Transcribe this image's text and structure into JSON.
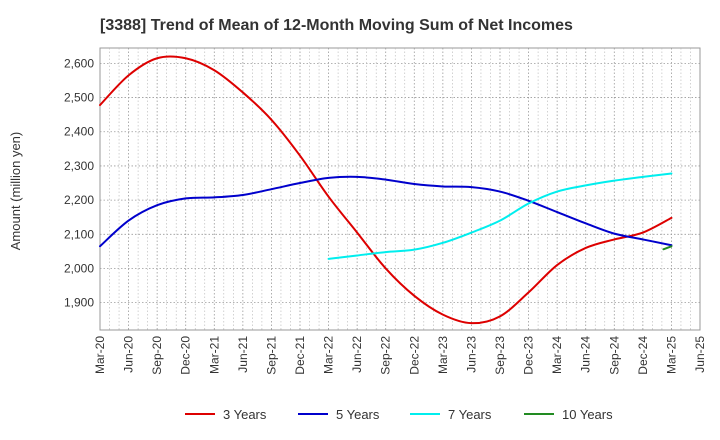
{
  "chart_data": {
    "type": "line",
    "title": "[3388]  Trend of Mean of 12-Month Moving Sum of Net Incomes",
    "xlabel": "",
    "ylabel": "Amount (million yen)",
    "x_tick_labels": [
      "Mar-20",
      "Jun-20",
      "Sep-20",
      "Dec-20",
      "Mar-21",
      "Jun-21",
      "Sep-21",
      "Dec-21",
      "Mar-22",
      "Jun-22",
      "Sep-22",
      "Dec-22",
      "Mar-23",
      "Jun-23",
      "Sep-23",
      "Dec-23",
      "Mar-24",
      "Jun-24",
      "Sep-24",
      "Dec-24",
      "Mar-25",
      "Jun-25"
    ],
    "y_tick_labels": [
      "1,900",
      "2,000",
      "2,100",
      "2,200",
      "2,300",
      "2,400",
      "2,500",
      "2,600"
    ],
    "y_ticks": [
      1900,
      2000,
      2100,
      2200,
      2300,
      2400,
      2500,
      2600
    ],
    "ylim": [
      1820,
      2645
    ],
    "grid": true,
    "legend_position": "bottom",
    "series": [
      {
        "name": "3 Years",
        "color": "#dd0000",
        "x": [
          "Mar-20",
          "Jun-20",
          "Sep-20",
          "Dec-20",
          "Mar-21",
          "Jun-21",
          "Sep-21",
          "Dec-21",
          "Mar-22",
          "Jun-22",
          "Sep-22",
          "Dec-22",
          "Mar-23",
          "Jun-23",
          "Sep-23",
          "Dec-23",
          "Mar-24",
          "Jun-24",
          "Sep-24",
          "Dec-24",
          "Mar-25"
        ],
        "values": [
          2478,
          2565,
          2615,
          2615,
          2580,
          2515,
          2435,
          2330,
          2210,
          2105,
          2000,
          1920,
          1865,
          1840,
          1860,
          1930,
          2010,
          2060,
          2085,
          2105,
          2148
        ]
      },
      {
        "name": "5 Years",
        "color": "#0000cc",
        "x": [
          "Mar-20",
          "Jun-20",
          "Sep-20",
          "Dec-20",
          "Mar-21",
          "Jun-21",
          "Sep-21",
          "Dec-21",
          "Mar-22",
          "Jun-22",
          "Sep-22",
          "Dec-22",
          "Mar-23",
          "Jun-23",
          "Sep-23",
          "Dec-23",
          "Mar-24",
          "Jun-24",
          "Sep-24",
          "Dec-24",
          "Mar-25"
        ],
        "values": [
          2065,
          2140,
          2185,
          2205,
          2208,
          2215,
          2232,
          2250,
          2265,
          2268,
          2260,
          2247,
          2240,
          2238,
          2225,
          2198,
          2165,
          2132,
          2102,
          2085,
          2068
        ]
      },
      {
        "name": "7 Years",
        "color": "#00eeee",
        "x": [
          "Mar-22",
          "Jun-22",
          "Sep-22",
          "Dec-22",
          "Mar-23",
          "Jun-23",
          "Sep-23",
          "Dec-23",
          "Mar-24",
          "Jun-24",
          "Sep-24",
          "Dec-24",
          "Mar-25"
        ],
        "values": [
          2028,
          2038,
          2048,
          2055,
          2075,
          2105,
          2140,
          2190,
          2225,
          2243,
          2257,
          2268,
          2278
        ]
      },
      {
        "name": "10 Years",
        "color": "#228b22",
        "x": [
          "Mar-25"
        ],
        "values": [
          2062
        ]
      }
    ]
  }
}
